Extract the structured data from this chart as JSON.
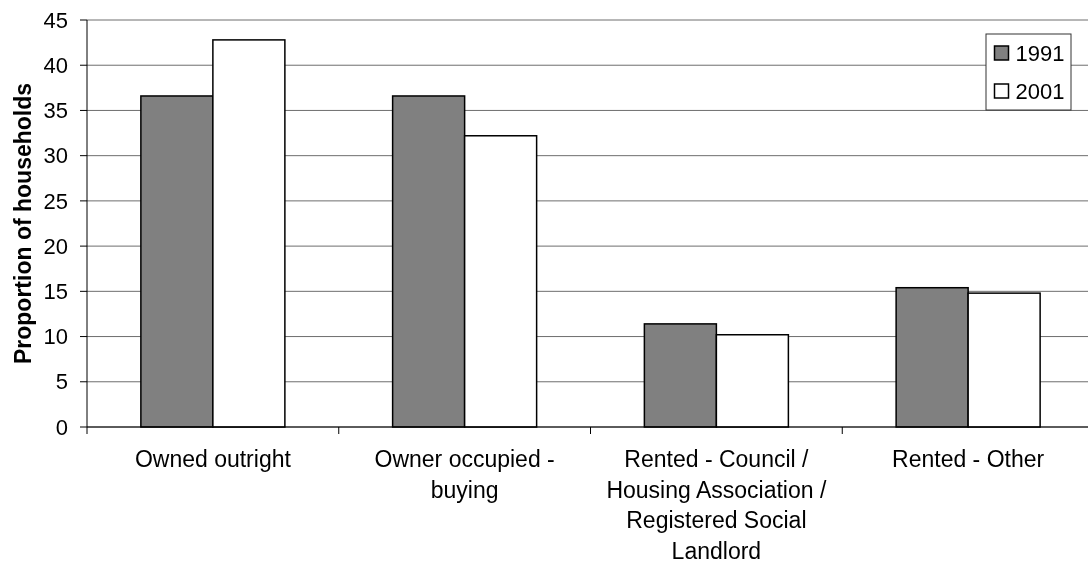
{
  "chart_data": {
    "type": "bar",
    "ylabel": "Proportion of households",
    "categories": [
      "Owned outright",
      "Owner occupied - buying",
      "Rented - Council / Housing Association / Registered Social Landlord",
      "Rented - Other"
    ],
    "series": [
      {
        "name": "1991",
        "color": "#808080",
        "values": [
          36.6,
          36.6,
          11.4,
          15.4
        ]
      },
      {
        "name": "2001",
        "color": "#ffffff",
        "values": [
          42.8,
          32.2,
          10.2,
          14.8
        ]
      }
    ],
    "ylim": [
      0,
      45
    ],
    "yticks": [
      0,
      5,
      10,
      15,
      20,
      25,
      30,
      35,
      40,
      45
    ],
    "grid": "y",
    "legend": "top right"
  }
}
